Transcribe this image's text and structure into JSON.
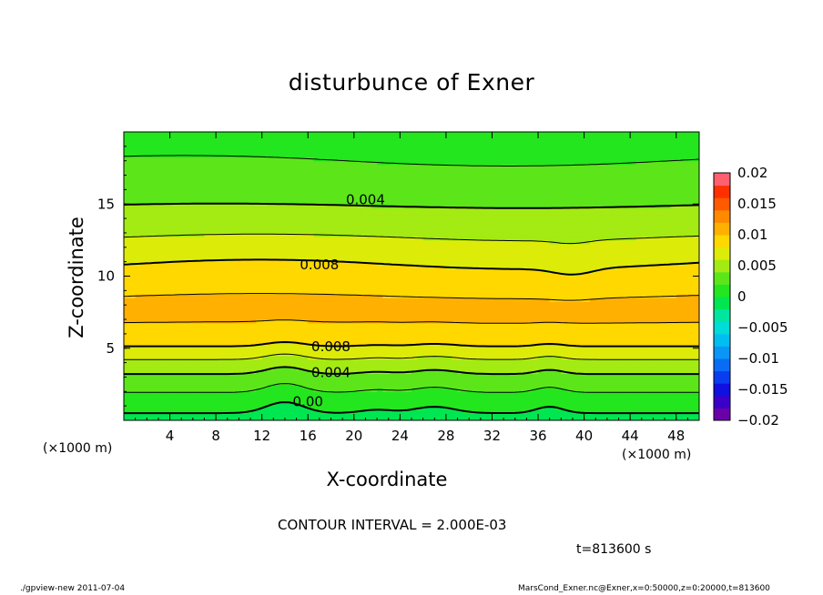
{
  "chart_data": {
    "type": "heatmap",
    "title": "disturbunce of Exner",
    "xlabel": "X-coordinate",
    "ylabel": "Z-coordinate",
    "x_unit": "(×1000 m)",
    "y_unit": "(×1000 m)",
    "xlim": [
      0,
      50
    ],
    "ylim": [
      0,
      20
    ],
    "x_ticks": [
      "4",
      "8",
      "12",
      "16",
      "20",
      "24",
      "28",
      "32",
      "36",
      "40",
      "44",
      "48"
    ],
    "y_ticks": [
      "5",
      "10",
      "15"
    ],
    "x_tick_values": [
      4,
      8,
      12,
      16,
      20,
      24,
      28,
      32,
      36,
      40,
      44,
      48
    ],
    "y_tick_values": [
      5,
      10,
      15
    ],
    "colorbar": {
      "ticks": [
        "0.02",
        "0.015",
        "0.01",
        "0.005",
        "0",
        "−0.005",
        "−0.01",
        "−0.015",
        "−0.02"
      ],
      "levels": [
        -0.02,
        -0.018,
        -0.016,
        -0.014,
        -0.012,
        -0.01,
        -0.008,
        -0.006,
        -0.004,
        -0.002,
        0,
        0.002,
        0.004,
        0.006,
        0.008,
        0.01,
        0.012,
        0.014,
        0.016,
        0.018,
        0.02
      ],
      "colors": [
        "#6a00a8",
        "#3a00c8",
        "#1010e0",
        "#0a3cf0",
        "#0a6cf5",
        "#0a96f5",
        "#00bff0",
        "#00dcd8",
        "#00e6a0",
        "#00e650",
        "#23e61e",
        "#5ce61a",
        "#a3eb12",
        "#dcec08",
        "#ffd800",
        "#ffb000",
        "#ff8a00",
        "#ff5a00",
        "#ff3000",
        "#ff6070"
      ]
    },
    "profile": {
      "z": [
        0,
        1,
        2,
        3,
        4,
        5,
        6,
        7,
        8,
        9,
        10,
        11,
        12,
        13,
        14,
        15,
        16,
        17,
        18,
        19,
        20
      ],
      "value": [
        -0.0005,
        0.0005,
        0.0021,
        0.0036,
        0.0055,
        0.0078,
        0.0093,
        0.0102,
        0.0103,
        0.0098,
        0.0088,
        0.0078,
        0.0067,
        0.0057,
        0.0047,
        0.0039,
        0.0032,
        0.0026,
        0.002,
        0.0014,
        0.0008
      ]
    },
    "contours": [
      {
        "level": 0.004,
        "label": "0.004",
        "z": 15.3
      },
      {
        "level": 0.008,
        "label": "0.008",
        "z": 10.8
      },
      {
        "level": 0.008,
        "label": "0.008",
        "z": 5.1
      },
      {
        "level": 0.004,
        "label": "0.004",
        "z": 3.3
      },
      {
        "level": 0.0,
        "label": "0.00",
        "z": 1.3
      }
    ],
    "contour_interval": "CONTOUR INTERVAL = 2.000E-03",
    "time": "t=813600 s"
  },
  "footer": {
    "left": "./gpview-new   2011-07-04",
    "right": "MarsCond_Exner.nc@Exner,x=0:50000,z=0:20000,t=813600"
  }
}
